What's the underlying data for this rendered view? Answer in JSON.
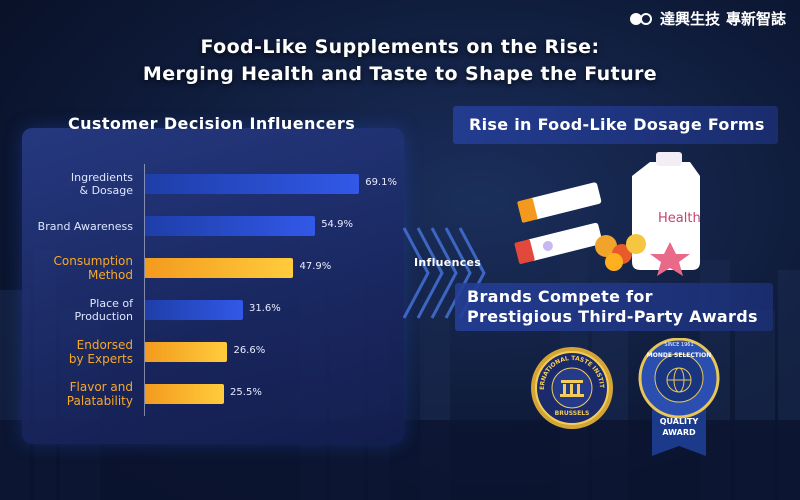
{
  "brand": {
    "name": "達興生技",
    "tagline": "專新智誌"
  },
  "title": {
    "line1": "Food-Like Supplements on the Rise:",
    "line2": "Merging Health and Taste to Shape the Future"
  },
  "left_panel": {
    "heading": "Customer Decision Influencers"
  },
  "connector": {
    "label": "Influences"
  },
  "right_panel": {
    "box1": "Rise in Food-Like Dosage Forms",
    "box2_line1": "Brands Compete for",
    "box2_line2": "Prestigious Third-Party Awards",
    "product_label": "Health",
    "medal1_ring": "INTERNATIONAL TASTE INSTITUTE",
    "medal1_city": "BRUSSELS",
    "medal2_top": "SINCE 1961",
    "medal2_ring": "MONDE SELECTION",
    "medal2_award1": "QUALITY",
    "medal2_award2": "AWARD"
  },
  "chart_data": {
    "type": "bar",
    "orientation": "horizontal",
    "title": "Customer Decision Influencers",
    "categories": [
      [
        "Ingredients",
        "& Dosage"
      ],
      [
        "Brand Awareness"
      ],
      [
        "Consumption",
        "Method"
      ],
      [
        "Place of",
        "Production"
      ],
      [
        "Endorsed",
        "by Experts"
      ],
      [
        "Flavor and",
        "Palatability"
      ]
    ],
    "values": [
      69.1,
      54.9,
      47.9,
      31.6,
      26.6,
      25.5
    ],
    "value_labels": [
      "69.1%",
      "54.9%",
      "47.9%",
      "31.6%",
      "26.6%",
      "25.5%"
    ],
    "highlighted": [
      false,
      false,
      true,
      false,
      true,
      true
    ],
    "colors": {
      "normal": "#2f55e0",
      "highlight": "#f7a928"
    },
    "xlim": [
      0,
      100
    ]
  }
}
